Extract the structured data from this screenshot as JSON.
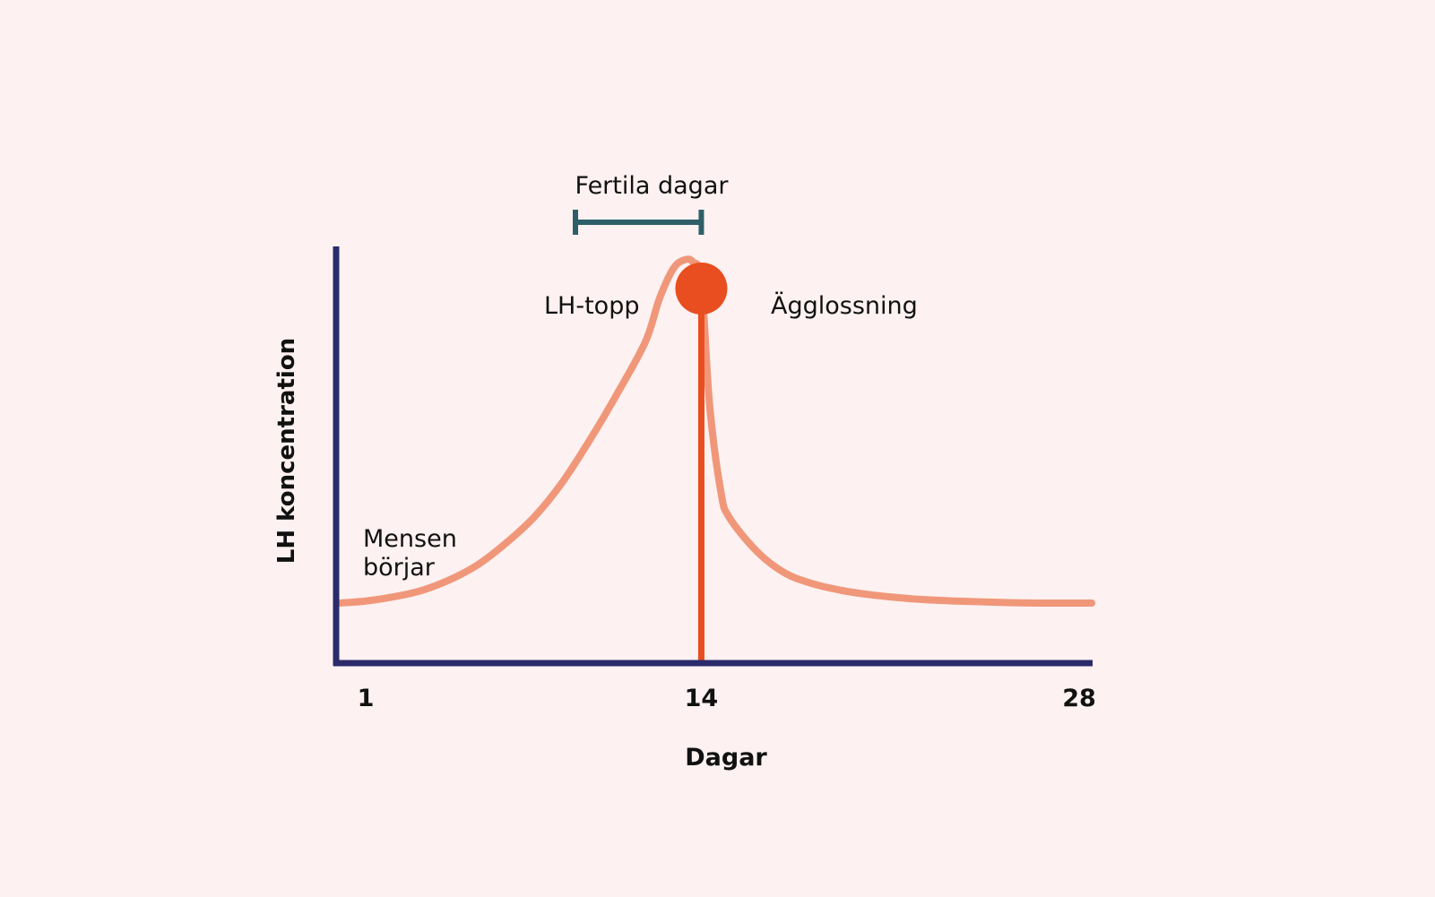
{
  "chart_data": {
    "type": "line",
    "title": "",
    "xlabel": "Dagar",
    "ylabel": "LH koncentration",
    "x_ticks": [
      1,
      14,
      28
    ],
    "xlim": [
      1,
      28
    ],
    "ylim": [
      0,
      100
    ],
    "grid": false,
    "legend": "none",
    "series": [
      {
        "x": [
          1,
          2,
          3,
          4,
          5,
          6,
          7,
          8,
          9,
          10,
          11,
          12,
          12.5,
          13,
          13.4,
          13.7,
          14,
          14.3,
          14.7,
          15,
          16,
          17,
          18,
          19,
          20,
          21,
          22,
          23,
          24,
          25,
          26,
          27,
          28
        ],
        "y": [
          14,
          14.5,
          15.5,
          17,
          19.5,
          23,
          28,
          34,
          42,
          52,
          63,
          75,
          85,
          92,
          94,
          93.5,
          89,
          60,
          40,
          34,
          26,
          21,
          18.5,
          17,
          16,
          15.3,
          14.8,
          14.5,
          14.3,
          14.1,
          14,
          14,
          14
        ]
      }
    ],
    "annotations": {
      "menses": [
        "Mensen",
        "börjar"
      ],
      "lh_peak": "LH-topp",
      "ovulation": {
        "label": "Ägglossning",
        "x": 14,
        "y": 89
      },
      "fertile_window": {
        "label": "Fertila dagar",
        "x_start": 9,
        "x_end": 14
      }
    },
    "colors": {
      "background": "#fdf1f1",
      "axis": "#2b2b6b",
      "curve": "#f0977a",
      "ovulation": "#e84e1f",
      "fertile_bar": "#2e5f69",
      "text": "#111111"
    }
  }
}
